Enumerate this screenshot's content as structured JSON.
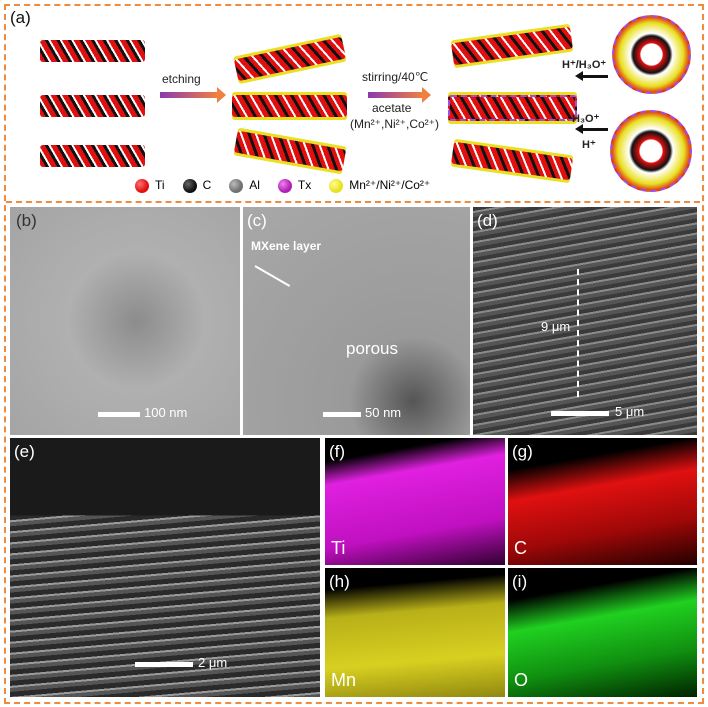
{
  "panel_labels": {
    "a": "(a)",
    "b": "(b)",
    "c": "(c)",
    "d": "(d)",
    "e": "(e)",
    "f": "(f)",
    "g": "(g)",
    "h": "(h)",
    "i": "(i)"
  },
  "schematic": {
    "step1": "etching",
    "step2_top": "stirring/40℃",
    "step2_bottom": "acetate",
    "step2_ions": "(Mn²⁺,Ni²⁺,Co²⁺)",
    "ion1": "H⁺/H₃O⁺",
    "ion2": "H₃O⁺",
    "ion3": "H⁺"
  },
  "legend": [
    {
      "label": "Ti",
      "color": "#e01010"
    },
    {
      "label": "C",
      "color": "#111111"
    },
    {
      "label": "Al",
      "color": "#707070"
    },
    {
      "label": "Tx",
      "color": "#b020b0"
    },
    {
      "label": "Mn²⁺/Ni²⁺/Co²⁺",
      "color": "#e8e020"
    }
  ],
  "images": {
    "b": {
      "scale": "100 nm"
    },
    "c": {
      "annotation": "MXene layer",
      "porous": "porous",
      "scale": "50 nm"
    },
    "d": {
      "thickness": "9 μm",
      "scale": "5 μm"
    },
    "e": {
      "scale": "2 μm"
    },
    "f": {
      "element": "Ti",
      "color": "#e020e0"
    },
    "g": {
      "element": "C",
      "color": "#e01010"
    },
    "h": {
      "element": "Mn",
      "color": "#d8d020"
    },
    "i": {
      "element": "O",
      "color": "#20d020"
    }
  },
  "colors": {
    "border": "#f08a3c",
    "accent": "#a050e0"
  }
}
